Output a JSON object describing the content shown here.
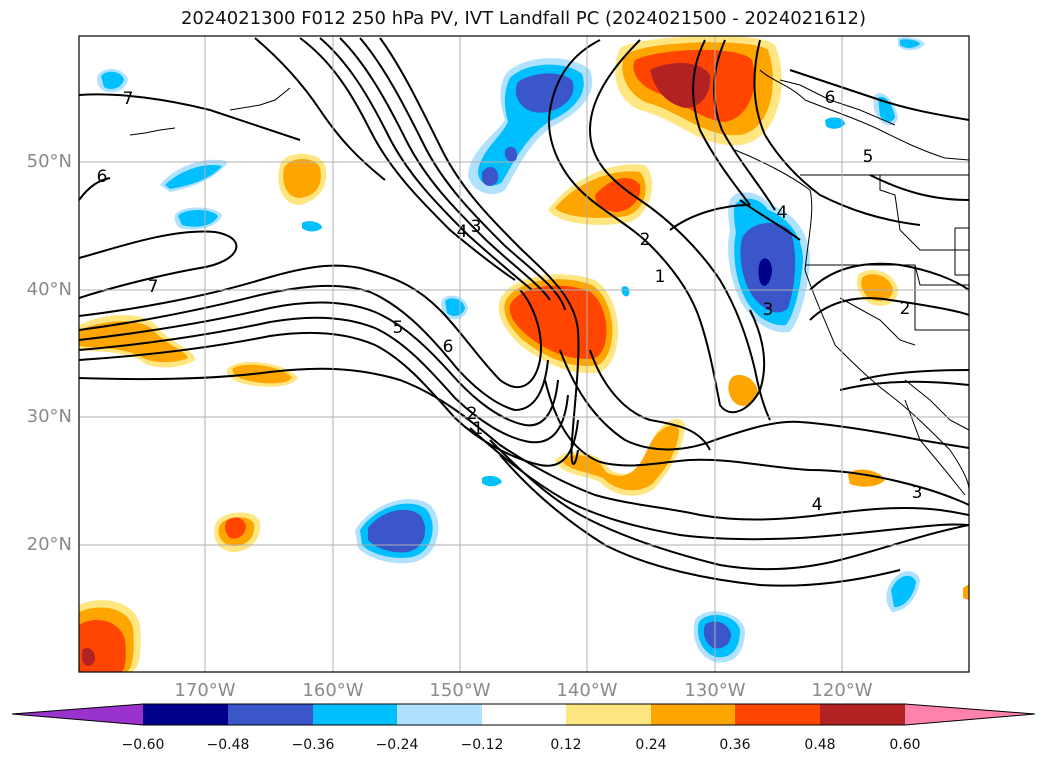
{
  "title": "2024021300 F012 250 hPa PV, IVT Landfall PC (2024021500 - 2024021612)",
  "map": {
    "lat_labels": [
      "50°N",
      "40°N",
      "30°N",
      "20°N"
    ],
    "lon_labels": [
      "170°W",
      "160°W",
      "150°W",
      "140°W",
      "130°W",
      "120°W"
    ],
    "gridline_color": "#b0b0b0",
    "contour_color": "#000000",
    "contour_labels": [
      "7",
      "6",
      "7",
      "3",
      "4",
      "5",
      "6",
      "2",
      "1",
      "2",
      "1",
      "4",
      "3",
      "2",
      "3",
      "4",
      "6",
      "5"
    ]
  },
  "colorbar": {
    "ticks": [
      "−0.60",
      "−0.48",
      "−0.36",
      "−0.24",
      "−0.12",
      "0.12",
      "0.24",
      "0.36",
      "0.48",
      "0.60"
    ],
    "colors": [
      "#9a32cd",
      "#00008b",
      "#3a56c8",
      "#00bfff",
      "#b0e2ff",
      "#ffffff",
      "#ffe680",
      "#ffa500",
      "#ff4500",
      "#b22222",
      "#ff82ab"
    ]
  }
}
